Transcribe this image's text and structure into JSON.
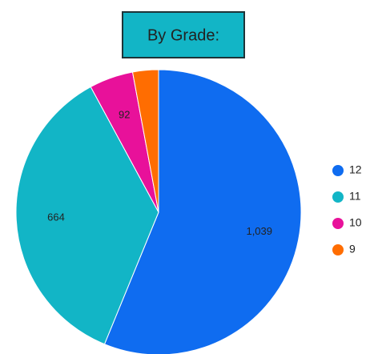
{
  "chart_data": {
    "type": "pie",
    "title": "By Grade:",
    "categories": [
      "12",
      "11",
      "10",
      "9"
    ],
    "values": [
      1039,
      664,
      92,
      54
    ],
    "value_labels": [
      "1,039",
      "664",
      "92",
      null
    ],
    "colors": [
      "#0f6cf0",
      "#12b5c6",
      "#e8119a",
      "#ff6d01"
    ],
    "legend": "right"
  }
}
